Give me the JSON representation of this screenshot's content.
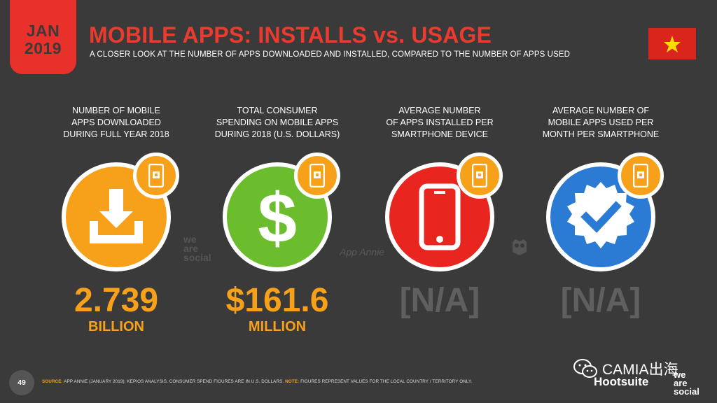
{
  "header": {
    "date_month": "JAN",
    "date_year": "2019",
    "title": "MOBILE APPS: INSTALLS vs. USAGE",
    "subtitle": "A CLOSER LOOK AT THE NUMBER OF APPS DOWNLOADED AND INSTALLED, COMPARED TO THE NUMBER OF APPS USED"
  },
  "flag": {
    "country_icon": "vietnam-flag-icon",
    "bg": "#da251d",
    "star": "#ffde00"
  },
  "stats": [
    {
      "label": "NUMBER OF MOBILE\nAPPS DOWNLOADED\nDURING FULL YEAR 2018",
      "icon": "download-icon",
      "color": "#f7a11a",
      "value": "2.739",
      "unit": "BILLION"
    },
    {
      "label": "TOTAL CONSUMER\nSPENDING ON MOBILE APPS\nDURING 2018 (U.S. DOLLARS)",
      "icon": "dollar-icon",
      "color": "#6bbd2d",
      "value": "$161.6",
      "unit": "MILLION"
    },
    {
      "label": "AVERAGE NUMBER\nOF APPS INSTALLED PER\nSMARTPHONE DEVICE",
      "icon": "smartphone-icon",
      "color": "#e8251e",
      "value": "[N/A]",
      "unit": ""
    },
    {
      "label": "AVERAGE NUMBER OF\nMOBILE APPS USED PER\nMONTH PER SMARTPHONE",
      "icon": "verified-check-icon",
      "color": "#2b7bd4",
      "value": "[N/A]",
      "unit": ""
    }
  ],
  "watermarks": {
    "we_are_social": "we\nare\nsocial",
    "app_annie": "App Annie"
  },
  "footer": {
    "page_number": "49",
    "source_label": "SOURCE:",
    "source_text": "APP ANNIE (JANUARY 2019); KEPIOS ANALYSIS. CONSUMER SPEND FIGURES ARE IN U.S. DOLLARS.",
    "note_label": "NOTE:",
    "note_text": "FIGURES REPRESENT VALUES FOR THE LOCAL COUNTRY / TERRITORY ONLY.",
    "hootsuite": "Hootsuite",
    "we_are_social": "we\nare\nsocial",
    "wechat_label": "CAMIA出海"
  }
}
